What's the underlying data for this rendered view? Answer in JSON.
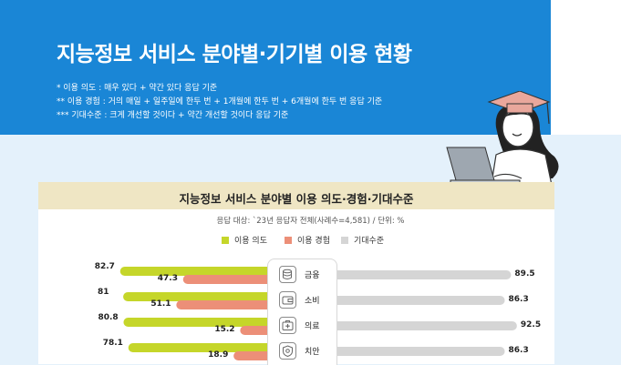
{
  "header": {
    "title": "지능정보 서비스 분야별·기기별 이용 현황",
    "notes": [
      "* 이용 의도 : 매우 있다 + 약간 있다 응답 기준",
      "** 이용 경험 : 거의 매일 + 일주일에 한두 번 + 1개월에 한두 번 + 6개월에 한두 번 응답 기준",
      "*** 기대수준 : 크게 개선할 것이다 + 약간 개선할 것이다 응답 기준"
    ]
  },
  "panel": {
    "title": "지능정보 서비스 분야별 이용 의도·경험·기대수준",
    "subtitle": "응답 대상: `23년 응답자 전체(사례수=4,581) / 단위: %"
  },
  "colors": {
    "header_bg": "#1a86d6",
    "intent": "#c5d62a",
    "experience": "#ec8f78",
    "expectation": "#d5d5d5"
  },
  "chart_data": {
    "type": "bar",
    "categories": [
      "금융",
      "소비",
      "의료",
      "치안"
    ],
    "category_icons": [
      "coin-stack-icon",
      "wallet-icon",
      "medical-kit-icon",
      "shield-icon"
    ],
    "series": [
      {
        "name": "이용 의도",
        "values": [
          82.7,
          81.0,
          80.8,
          78.1
        ]
      },
      {
        "name": "이용 경험",
        "values": [
          47.3,
          51.1,
          15.2,
          18.9
        ]
      },
      {
        "name": "기대수준",
        "values": [
          89.5,
          86.3,
          92.5,
          86.3
        ]
      }
    ],
    "unit": "%",
    "legend_position": "top"
  }
}
